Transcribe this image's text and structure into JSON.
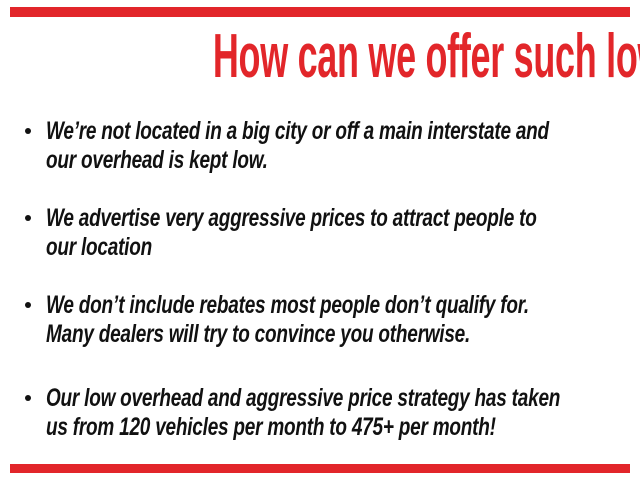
{
  "slide": {
    "title": "How can we offer such low prices?",
    "accent_color": "#e2262a",
    "text_color": "#111111",
    "bullets": [
      {
        "lines": [
          "We’re not located in a big city or off a main interstate and",
          "our overhead is kept low."
        ]
      },
      {
        "lines": [
          "We advertise very aggressive prices to attract people to",
          "our location"
        ]
      },
      {
        "lines": [
          "We don’t include rebates most people don’t qualify for.",
          "Many dealers will try to convince you otherwise."
        ]
      },
      {
        "lines": [
          "Our low overhead and aggressive price strategy has taken",
          "us from 120 vehicles per month to 475+ per month!"
        ]
      }
    ]
  }
}
